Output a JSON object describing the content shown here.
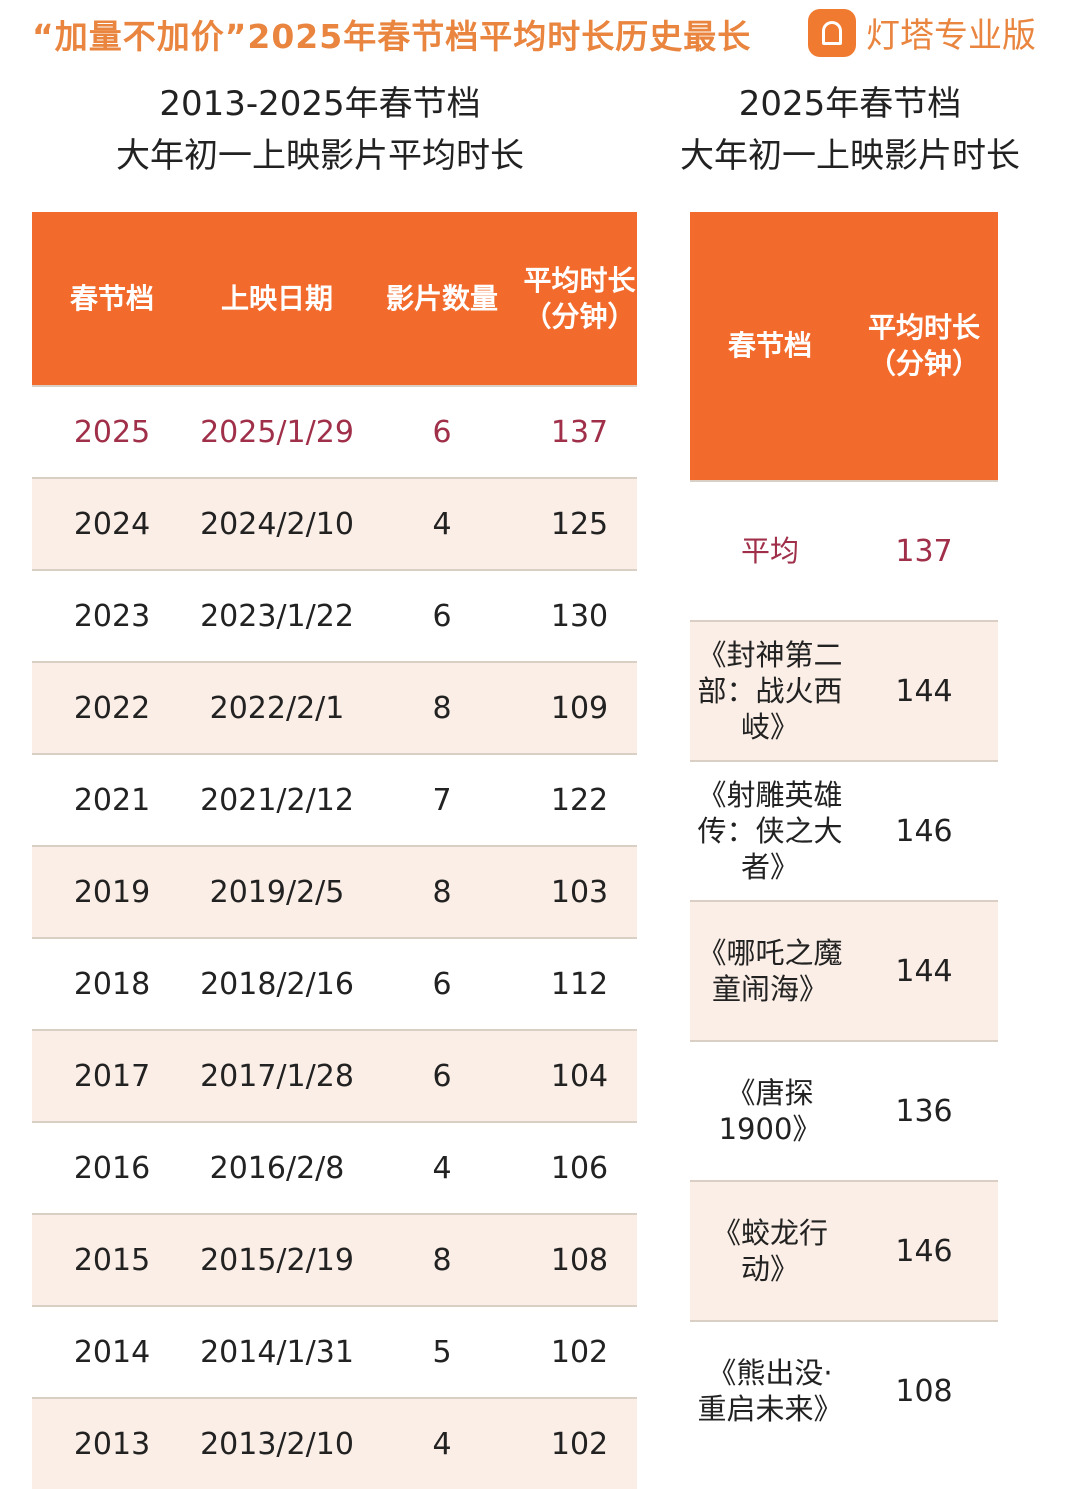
{
  "header": {
    "title": "“加量不加价”2025年春节档平均时长历史最长",
    "brand": "灯塔专业版"
  },
  "left": {
    "subtitle_line1": "2013-2025年春节档",
    "subtitle_line2": "大年初一上映影片平均时长",
    "columns": [
      "春节档",
      "上映日期",
      "影片数量",
      "平均时长（分钟）"
    ],
    "rows": [
      [
        "2025",
        "2025/1/29",
        "6",
        "137"
      ],
      [
        "2024",
        "2024/2/10",
        "4",
        "125"
      ],
      [
        "2023",
        "2023/1/22",
        "6",
        "130"
      ],
      [
        "2022",
        "2022/2/1",
        "8",
        "109"
      ],
      [
        "2021",
        "2021/2/12",
        "7",
        "122"
      ],
      [
        "2019",
        "2019/2/5",
        "8",
        "103"
      ],
      [
        "2018",
        "2018/2/16",
        "6",
        "112"
      ],
      [
        "2017",
        "2017/1/28",
        "6",
        "104"
      ],
      [
        "2016",
        "2016/2/8",
        "4",
        "106"
      ],
      [
        "2015",
        "2015/2/19",
        "8",
        "108"
      ],
      [
        "2014",
        "2014/1/31",
        "5",
        "102"
      ],
      [
        "2013",
        "2013/2/10",
        "4",
        "102"
      ]
    ]
  },
  "right": {
    "subtitle_line1": "2025年春节档",
    "subtitle_line2": "大年初一上映影片时长",
    "columns": [
      "春节档",
      "平均时长（分钟）"
    ],
    "rows": [
      [
        "平均",
        "137"
      ],
      [
        "《封神第二部：战火西岐》",
        "144"
      ],
      [
        "《射雕英雄传：侠之大者》",
        "146"
      ],
      [
        "《哪吒之魔童闹海》",
        "144"
      ],
      [
        "《唐探1900》",
        "136"
      ],
      [
        "《蛟龙行动》",
        "146"
      ],
      [
        "《熊出没·重启未来》",
        "108"
      ]
    ]
  },
  "colors": {
    "header": "#f26b2c",
    "highlight": "#a0304a",
    "alt_row": "#fbeee6",
    "title": "#e9853f"
  }
}
